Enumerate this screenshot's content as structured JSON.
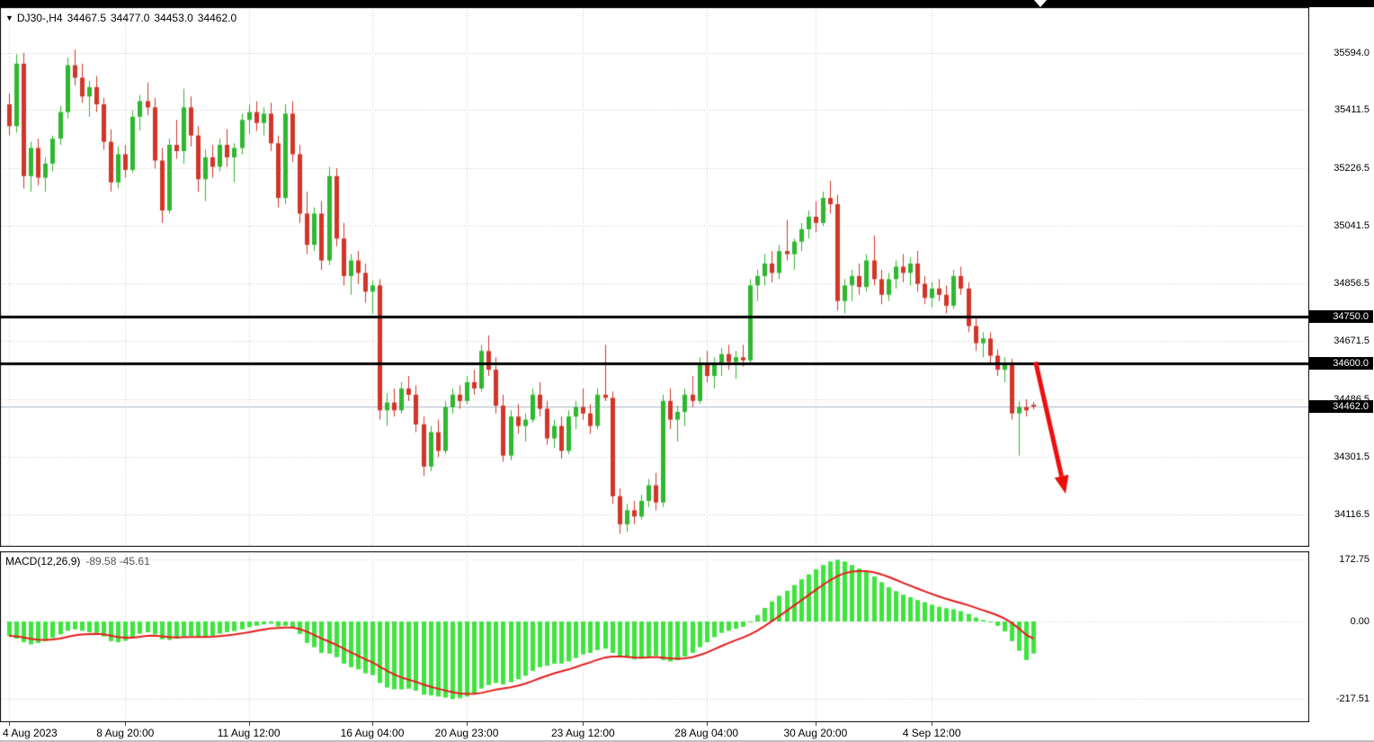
{
  "header": {
    "menu_icon": "▼",
    "symbol_period": "DJ30-,H4",
    "open": "34467.5",
    "high": "34477.0",
    "low": "34453.0",
    "close": "34462.0"
  },
  "indicator": {
    "name": "MACD(12,26,9)",
    "value_main": "-89.58",
    "value_signal": "-45.61"
  },
  "colors": {
    "up": "#2eb82e",
    "down": "#d23629",
    "macd_histogram": "#3fe43f",
    "signal_line": "#e61c1c",
    "grid": "#c8c8c8",
    "sr_line": "#000000",
    "arrow": "#ed0e0e",
    "current_price_line": "#a9b7c6",
    "tag_bg": "#000000",
    "tag_text": "#ffffff",
    "background": "#ffffff"
  },
  "price_axis": {
    "labels": [
      {
        "text": "35594.0",
        "value": 35594.0,
        "tag": false
      },
      {
        "text": "35411.5",
        "value": 35411.5,
        "tag": false
      },
      {
        "text": "35226.5",
        "value": 35226.5,
        "tag": false
      },
      {
        "text": "35041.5",
        "value": 35041.5,
        "tag": false
      },
      {
        "text": "34856.5",
        "value": 34856.5,
        "tag": false
      },
      {
        "text": "34750.0",
        "value": 34750.0,
        "tag": true
      },
      {
        "text": "34671.5",
        "value": 34671.5,
        "tag": false
      },
      {
        "text": "34600.0",
        "value": 34600.0,
        "tag": true
      },
      {
        "text": "34486.5",
        "value": 34486.5,
        "tag": false
      },
      {
        "text": "34462.0",
        "value": 34462.0,
        "tag": true
      },
      {
        "text": "34301.5",
        "value": 34301.5,
        "tag": false
      },
      {
        "text": "34116.5",
        "value": 34116.5,
        "tag": false
      }
    ]
  },
  "macd_axis": {
    "labels": [
      {
        "text": "172.75",
        "value": 172.75
      },
      {
        "text": "0.00",
        "value": 0
      },
      {
        "text": "-217.51",
        "value": -217.51
      }
    ]
  },
  "chart_data": {
    "type": "candlestick",
    "symbol": "DJ30-",
    "timeframe": "H4",
    "title": "DJ30-,H4",
    "current_bar": {
      "open": 34467.5,
      "high": 34477.0,
      "low": 34453.0,
      "close": 34462.0
    },
    "current_price": 34462.0,
    "sr_levels": [
      34750.0,
      34600.0
    ],
    "ylim": [
      34020,
      35640
    ],
    "time_ticks": [
      {
        "index": 0,
        "label": "4 Aug 2023"
      },
      {
        "index": 16,
        "label": "8 Aug 20:00"
      },
      {
        "index": 33,
        "label": "11 Aug 12:00"
      },
      {
        "index": 50,
        "label": "16 Aug 04:00"
      },
      {
        "index": 63,
        "label": "20 Aug 23:00"
      },
      {
        "index": 79,
        "label": "23 Aug 12:00"
      },
      {
        "index": 96,
        "label": "28 Aug 04:00"
      },
      {
        "index": 111,
        "label": "30 Aug 20:00"
      },
      {
        "index": 127,
        "label": "4 Sep 12:00"
      }
    ],
    "candles": [
      [
        35430,
        35465,
        35330,
        35360
      ],
      [
        35360,
        35590,
        35340,
        35560
      ],
      [
        35560,
        35594,
        35160,
        35200
      ],
      [
        35200,
        35310,
        35150,
        35290
      ],
      [
        35290,
        35320,
        35170,
        35195
      ],
      [
        35195,
        35260,
        35150,
        35240
      ],
      [
        35240,
        35330,
        35215,
        35320
      ],
      [
        35320,
        35425,
        35300,
        35405
      ],
      [
        35405,
        35580,
        35385,
        35555
      ],
      [
        35555,
        35605,
        35490,
        35515
      ],
      [
        35515,
        35560,
        35435,
        35455
      ],
      [
        35455,
        35505,
        35390,
        35485
      ],
      [
        35485,
        35520,
        35405,
        35430
      ],
      [
        35430,
        35450,
        35285,
        35310
      ],
      [
        35310,
        35350,
        35150,
        35180
      ],
      [
        35180,
        35295,
        35160,
        35270
      ],
      [
        35270,
        35300,
        35195,
        35220
      ],
      [
        35220,
        35410,
        35210,
        35390
      ],
      [
        35390,
        35460,
        35345,
        35440
      ],
      [
        35440,
        35500,
        35395,
        35420
      ],
      [
        35420,
        35450,
        35225,
        35250
      ],
      [
        35250,
        35290,
        35050,
        35090
      ],
      [
        35090,
        35320,
        35080,
        35300
      ],
      [
        35300,
        35380,
        35255,
        35280
      ],
      [
        35280,
        35480,
        35240,
        35420
      ],
      [
        35420,
        35455,
        35295,
        35330
      ],
      [
        35330,
        35360,
        35150,
        35190
      ],
      [
        35190,
        35285,
        35120,
        35260
      ],
      [
        35260,
        35300,
        35195,
        35230
      ],
      [
        35230,
        35320,
        35215,
        35300
      ],
      [
        35300,
        35350,
        35230,
        35260
      ],
      [
        35260,
        35305,
        35180,
        35290
      ],
      [
        35290,
        35400,
        35270,
        35380
      ],
      [
        35380,
        35430,
        35335,
        35405
      ],
      [
        35405,
        35440,
        35345,
        35370
      ],
      [
        35370,
        35420,
        35330,
        35400
      ],
      [
        35400,
        35435,
        35280,
        35305
      ],
      [
        35305,
        35330,
        35100,
        35130
      ],
      [
        35130,
        35430,
        35110,
        35400
      ],
      [
        35400,
        35440,
        35245,
        35270
      ],
      [
        35270,
        35300,
        35050,
        35080
      ],
      [
        35080,
        35150,
        34950,
        34980
      ],
      [
        34980,
        35100,
        34960,
        35080
      ],
      [
        35080,
        35120,
        34900,
        34930
      ],
      [
        34930,
        35230,
        34915,
        35200
      ],
      [
        35200,
        35225,
        34975,
        35000
      ],
      [
        35000,
        35050,
        34850,
        34880
      ],
      [
        34880,
        34950,
        34820,
        34930
      ],
      [
        34930,
        34960,
        34855,
        34890
      ],
      [
        34890,
        34920,
        34795,
        34830
      ],
      [
        34830,
        34865,
        34760,
        34850
      ],
      [
        34850,
        34870,
        34420,
        34450
      ],
      [
        34450,
        34505,
        34400,
        34475
      ],
      [
        34475,
        34520,
        34430,
        34450
      ],
      [
        34450,
        34540,
        34440,
        34520
      ],
      [
        34520,
        34560,
        34480,
        34500
      ],
      [
        34500,
        34530,
        34380,
        34405
      ],
      [
        34405,
        34430,
        34240,
        34270
      ],
      [
        34270,
        34400,
        34255,
        34380
      ],
      [
        34380,
        34420,
        34300,
        34320
      ],
      [
        34320,
        34480,
        34310,
        34460
      ],
      [
        34460,
        34520,
        34440,
        34500
      ],
      [
        34500,
        34530,
        34455,
        34480
      ],
      [
        34480,
        34560,
        34470,
        34540
      ],
      [
        34540,
        34580,
        34500,
        34520
      ],
      [
        34520,
        34660,
        34510,
        34640
      ],
      [
        34640,
        34690,
        34560,
        34580
      ],
      [
        34580,
        34620,
        34440,
        34465
      ],
      [
        34465,
        34500,
        34285,
        34305
      ],
      [
        34305,
        34450,
        34290,
        34430
      ],
      [
        34430,
        34470,
        34375,
        34400
      ],
      [
        34400,
        34440,
        34350,
        34420
      ],
      [
        34420,
        34520,
        34410,
        34500
      ],
      [
        34500,
        34540,
        34430,
        34455
      ],
      [
        34455,
        34480,
        34340,
        34360
      ],
      [
        34360,
        34420,
        34330,
        34400
      ],
      [
        34400,
        34430,
        34295,
        34320
      ],
      [
        34320,
        34450,
        34310,
        34430
      ],
      [
        34430,
        34480,
        34390,
        34460
      ],
      [
        34460,
        34520,
        34420,
        34440
      ],
      [
        34440,
        34470,
        34375,
        34400
      ],
      [
        34400,
        34520,
        34390,
        34500
      ],
      [
        34500,
        34660,
        34480,
        34490
      ],
      [
        34490,
        34510,
        34150,
        34175
      ],
      [
        34175,
        34200,
        34055,
        34085
      ],
      [
        34085,
        34150,
        34060,
        34130
      ],
      [
        34130,
        34160,
        34085,
        34110
      ],
      [
        34110,
        34180,
        34100,
        34160
      ],
      [
        34160,
        34230,
        34140,
        34210
      ],
      [
        34210,
        34250,
        34130,
        34155
      ],
      [
        34155,
        34500,
        34140,
        34480
      ],
      [
        34480,
        34520,
        34390,
        34420
      ],
      [
        34420,
        34465,
        34350,
        34445
      ],
      [
        34445,
        34520,
        34400,
        34500
      ],
      [
        34500,
        34560,
        34460,
        34480
      ],
      [
        34480,
        34620,
        34470,
        34600
      ],
      [
        34600,
        34640,
        34540,
        34560
      ],
      [
        34560,
        34620,
        34520,
        34600
      ],
      [
        34600,
        34650,
        34560,
        34630
      ],
      [
        34630,
        34660,
        34580,
        34605
      ],
      [
        34605,
        34640,
        34550,
        34620
      ],
      [
        34620,
        34660,
        34590,
        34610
      ],
      [
        34610,
        34870,
        34600,
        34850
      ],
      [
        34850,
        34900,
        34800,
        34880
      ],
      [
        34880,
        34950,
        34850,
        34920
      ],
      [
        34920,
        34960,
        34860,
        34890
      ],
      [
        34890,
        34980,
        34870,
        34960
      ],
      [
        34960,
        35060,
        34930,
        34950
      ],
      [
        34950,
        35000,
        34900,
        34990
      ],
      [
        34990,
        35050,
        34960,
        35030
      ],
      [
        35030,
        35090,
        35000,
        35070
      ],
      [
        35070,
        35120,
        35020,
        35050
      ],
      [
        35050,
        35150,
        35040,
        35130
      ],
      [
        35130,
        35185,
        35080,
        35110
      ],
      [
        35110,
        35140,
        34770,
        34800
      ],
      [
        34800,
        34870,
        34760,
        34850
      ],
      [
        34850,
        34900,
        34800,
        34880
      ],
      [
        34880,
        34920,
        34820,
        34845
      ],
      [
        34845,
        34950,
        34830,
        34930
      ],
      [
        34930,
        35010,
        34850,
        34870
      ],
      [
        34870,
        34900,
        34790,
        34820
      ],
      [
        34820,
        34890,
        34800,
        34870
      ],
      [
        34870,
        34930,
        34840,
        34910
      ],
      [
        34910,
        34950,
        34860,
        34890
      ],
      [
        34890,
        34940,
        34850,
        34920
      ],
      [
        34920,
        34960,
        34830,
        34855
      ],
      [
        34855,
        34880,
        34790,
        34810
      ],
      [
        34810,
        34860,
        34780,
        34840
      ],
      [
        34840,
        34870,
        34800,
        34820
      ],
      [
        34820,
        34850,
        34760,
        34785
      ],
      [
        34785,
        34900,
        34775,
        34880
      ],
      [
        34880,
        34910,
        34820,
        34840
      ],
      [
        34840,
        34860,
        34700,
        34720
      ],
      [
        34720,
        34750,
        34640,
        34665
      ],
      [
        34665,
        34700,
        34620,
        34680
      ],
      [
        34680,
        34700,
        34600,
        34625
      ],
      [
        34625,
        34645,
        34560,
        34580
      ],
      [
        34580,
        34620,
        34540,
        34600
      ],
      [
        34600,
        34615,
        34420,
        34440
      ],
      [
        34440,
        34480,
        34305,
        34460
      ],
      [
        34460,
        34485,
        34430,
        34450
      ],
      [
        34467.5,
        34477,
        34453,
        34462
      ]
    ],
    "annotations": [
      {
        "type": "arrow",
        "direction": "down-right",
        "from": {
          "index": 141.3,
          "price": 34605
        },
        "to": {
          "index": 145.2,
          "price": 34205
        },
        "color": "#ed0e0e"
      }
    ],
    "indicator_pane": {
      "type": "bar",
      "name": "MACD(12,26,9)",
      "last_macd": -89.58,
      "last_signal": -45.61,
      "signal_method": "EMA9 of histogram",
      "axis_labels": [
        172.75,
        0.0,
        -217.51
      ],
      "histogram": [
        -40,
        -48,
        -58,
        -64,
        -60,
        -55,
        -46,
        -36,
        -26,
        -22,
        -26,
        -30,
        -32,
        -42,
        -55,
        -58,
        -54,
        -44,
        -34,
        -30,
        -36,
        -50,
        -52,
        -48,
        -42,
        -40,
        -44,
        -45,
        -40,
        -34,
        -30,
        -27,
        -22,
        -16,
        -12,
        -8,
        -6,
        -14,
        -12,
        -18,
        -35,
        -60,
        -72,
        -88,
        -90,
        -100,
        -118,
        -128,
        -134,
        -145,
        -150,
        -172,
        -185,
        -190,
        -190,
        -188,
        -194,
        -205,
        -207,
        -210,
        -213,
        -217,
        -215,
        -210,
        -202,
        -188,
        -178,
        -172,
        -176,
        -170,
        -162,
        -152,
        -138,
        -128,
        -124,
        -118,
        -118,
        -112,
        -102,
        -92,
        -88,
        -80,
        -76,
        -88,
        -98,
        -102,
        -106,
        -104,
        -98,
        -96,
        -108,
        -112,
        -108,
        -98,
        -88,
        -72,
        -58,
        -44,
        -32,
        -26,
        -20,
        -15,
        -2,
        18,
        38,
        56,
        72,
        86,
        102,
        118,
        132,
        146,
        158,
        168,
        172.75,
        168,
        158,
        148,
        140,
        126,
        110,
        96,
        85,
        75,
        68,
        60,
        54,
        47,
        41,
        37,
        34,
        29,
        21,
        11,
        4,
        -2,
        -12,
        -28,
        -55,
        -82,
        -108,
        -89.58
      ]
    }
  }
}
